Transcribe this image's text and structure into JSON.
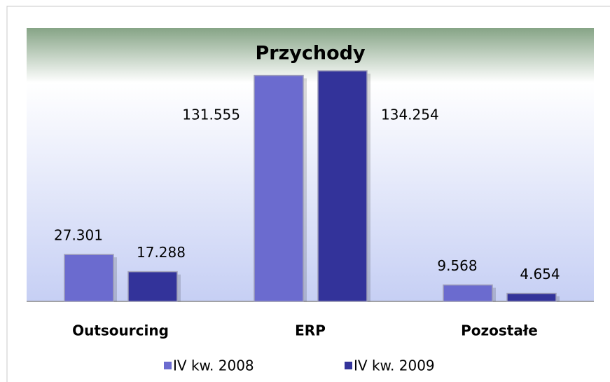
{
  "chart_data": {
    "type": "bar",
    "title": "Przychody",
    "categories": [
      "Outsourcing",
      "ERP",
      "Pozostałe"
    ],
    "series": [
      {
        "name": "IV kw. 2008",
        "color": "#6b6bcf",
        "values": [
          27.301,
          131.555,
          9.568
        ]
      },
      {
        "name": "IV kw. 2009",
        "color": "#33339a",
        "values": [
          17.288,
          134.254,
          4.654
        ]
      }
    ]
  }
}
